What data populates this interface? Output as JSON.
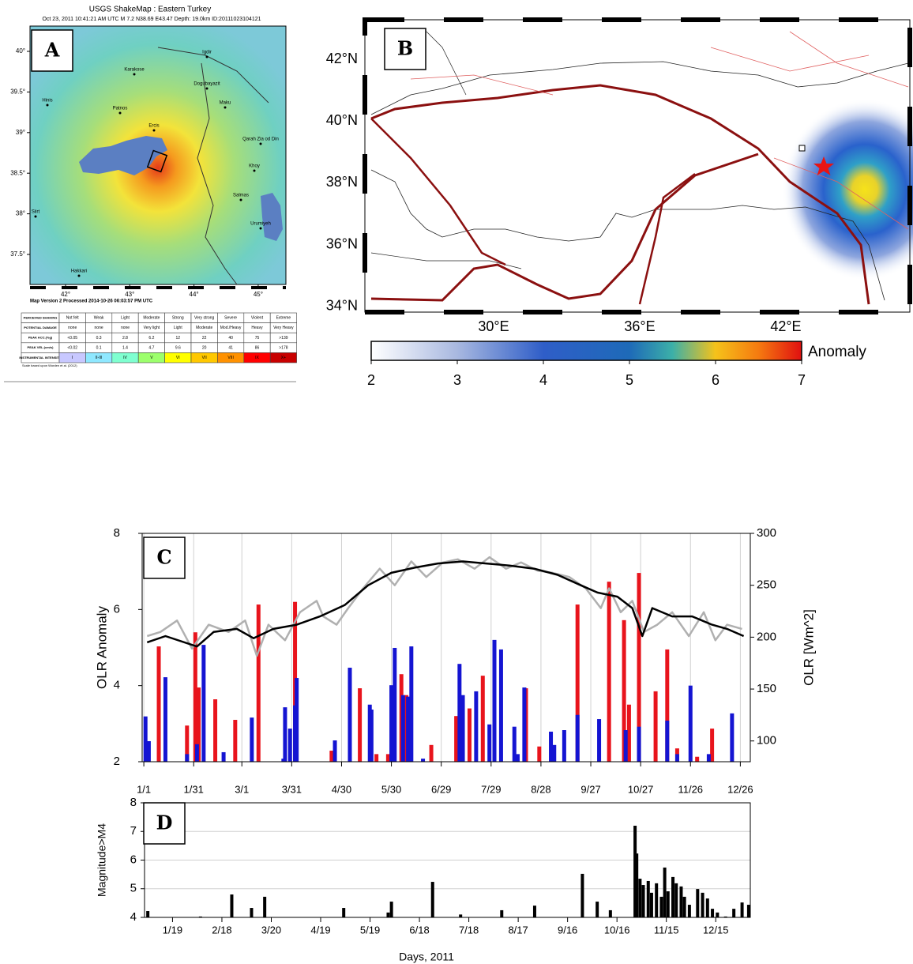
{
  "panel_a": {
    "label": "A",
    "title": "USGS ShakeMap : Eastern Turkey",
    "subtitle": "Oct 23, 2011 10:41:21 AM UTC    M 7.2    N38.69 E43.47    Depth: 19.0km    ID:20111023104121",
    "lat_ticks": [
      {
        "value": 40,
        "label": "40°"
      },
      {
        "value": 39.5,
        "label": "39.5°"
      },
      {
        "value": 39,
        "label": "39°"
      },
      {
        "value": 38.5,
        "label": "38.5°"
      },
      {
        "value": 38,
        "label": "38°"
      },
      {
        "value": 37.5,
        "label": "37.5°"
      }
    ],
    "lon_ticks": [
      {
        "value": 42,
        "label": "42°"
      },
      {
        "value": 43,
        "label": "43°"
      },
      {
        "value": 44,
        "label": "44°"
      },
      {
        "value": 45,
        "label": "45°"
      }
    ],
    "places": [
      "Igdir",
      "Karakose",
      "Dogubayazit",
      "Maku",
      "Hinis",
      "Patnos",
      "Ercis",
      "Qarah Zia od Din",
      "Khoy",
      "Salmas",
      "Urumiyeh",
      "Siirt",
      "Hakkari"
    ],
    "version_note": "Map Version 2 Processed 2014-10-26 06:03:57 PM UTC",
    "legend_table": [
      [
        "PERCEIVED SHAKING",
        "Not felt",
        "Weak",
        "Light",
        "Moderate",
        "Strong",
        "Very strong",
        "Severe",
        "Violent",
        "Extreme"
      ],
      [
        "POTENTIAL DAMAGE",
        "none",
        "none",
        "none",
        "Very light",
        "Light",
        "Moderate",
        "Mod./Heavy",
        "Heavy",
        "Very Heavy"
      ],
      [
        "PEAK ACC.(%g)",
        "<0.05",
        "0.3",
        "2.8",
        "6.2",
        "12",
        "22",
        "40",
        "75",
        ">139"
      ],
      [
        "PEAK VEL.(cm/s)",
        "<0.02",
        "0.1",
        "1.4",
        "4.7",
        "9.6",
        "20",
        "41",
        "86",
        ">178"
      ],
      [
        "INSTRUMENTAL INTENSITY",
        "I",
        "II-III",
        "IV",
        "V",
        "VI",
        "VII",
        "VIII",
        "IX",
        "X+"
      ]
    ],
    "scale_note": "Scale based upon Worden et al. (2012)"
  },
  "panel_b": {
    "label": "B",
    "lat_ticks": [
      {
        "value": 42,
        "label": "42°N"
      },
      {
        "value": 40,
        "label": "40°N"
      },
      {
        "value": 38,
        "label": "38°N"
      },
      {
        "value": 36,
        "label": "36°N"
      },
      {
        "value": 34,
        "label": "34°N"
      }
    ],
    "lon_ticks": [
      {
        "value": 30,
        "label": "30°E"
      },
      {
        "value": 36,
        "label": "36°E"
      },
      {
        "value": 42,
        "label": "42°E"
      }
    ],
    "colorbar": {
      "label": "Anomaly",
      "lim": [
        2,
        7
      ],
      "ticks": [
        2,
        3,
        4,
        5,
        6,
        7
      ]
    }
  },
  "chart_data": [
    {
      "type": "combo",
      "label": "C",
      "ylabel": "OLR Anomaly",
      "y2label": "OLR [Wm^2]",
      "xlim": [
        0,
        366
      ],
      "xticks": [
        {
          "value": 1,
          "label": "1/1"
        },
        {
          "value": 31,
          "label": "1/31"
        },
        {
          "value": 60,
          "label": "3/1"
        },
        {
          "value": 90,
          "label": "3/31"
        },
        {
          "value": 120,
          "label": "4/30"
        },
        {
          "value": 150,
          "label": "5/30"
        },
        {
          "value": 180,
          "label": "6/29"
        },
        {
          "value": 210,
          "label": "7/29"
        },
        {
          "value": 240,
          "label": "8/28"
        },
        {
          "value": 270,
          "label": "9/27"
        },
        {
          "value": 300,
          "label": "10/27"
        },
        {
          "value": 330,
          "label": "11/26"
        },
        {
          "value": 360,
          "label": "12/26"
        }
      ],
      "ylim": [
        2,
        8
      ],
      "yticks": [
        2,
        4,
        6,
        8
      ],
      "y2lim": [
        80,
        300
      ],
      "y2ticks": [
        100,
        150,
        200,
        250,
        300
      ],
      "grid": "x",
      "series": [
        {
          "type": "bar",
          "color": "#e8141c",
          "x": [
            10,
            27,
            32,
            34,
            44,
            56,
            70,
            92,
            114,
            131,
            141,
            148,
            156,
            159,
            174,
            189,
            197,
            205,
            231,
            239,
            262,
            281,
            290,
            293,
            299,
            309,
            316,
            322,
            334,
            343
          ],
          "values": [
            5.03,
            2.95,
            5.4,
            3.95,
            3.64,
            3.1,
            6.13,
            6.2,
            2.29,
            3.93,
            2.2,
            2.2,
            4.3,
            3.75,
            2.44,
            3.2,
            3.4,
            4.26,
            3.93,
            2.4,
            6.13,
            6.73,
            5.72,
            3.5,
            6.96,
            3.85,
            4.95,
            2.35,
            2.13,
            2.87
          ]
        },
        {
          "type": "bar",
          "color": "#1414d2",
          "x": [
            2,
            4,
            14,
            27,
            33,
            37,
            49,
            66,
            85,
            86,
            89,
            92,
            93,
            116,
            125,
            137,
            138,
            150,
            152,
            157,
            160,
            162,
            169,
            191,
            193,
            201,
            209,
            212,
            216,
            224,
            226,
            230,
            246,
            248,
            254,
            262,
            275,
            291,
            299,
            316,
            322,
            330,
            341,
            355
          ],
          "values": [
            3.19,
            2.54,
            4.22,
            2.2,
            2.46,
            5.07,
            2.25,
            3.16,
            2.08,
            3.43,
            2.87,
            3.48,
            4.2,
            2.56,
            4.47,
            3.5,
            3.37,
            4.01,
            4.99,
            3.75,
            3.71,
            5.03,
            2.08,
            4.57,
            3.75,
            3.85,
            2.98,
            5.2,
            4.95,
            2.92,
            2.2,
            3.95,
            2.79,
            2.44,
            2.83,
            3.23,
            3.12,
            2.83,
            2.92,
            3.08,
            2.2,
            4.0,
            2.2,
            3.27
          ]
        },
        {
          "type": "line",
          "axis": "y2",
          "color": "#b0b0b0",
          "x": [
            3,
            11,
            21,
            30,
            40,
            52,
            62,
            69,
            76,
            86,
            95,
            105,
            109,
            117,
            124,
            133,
            143,
            152,
            162,
            171,
            181,
            190,
            200,
            209,
            219,
            228,
            238,
            247,
            257,
            267,
            276,
            281,
            288,
            295,
            302,
            310,
            319,
            329,
            338,
            345,
            352,
            361
          ],
          "values": [
            201,
            205,
            216,
            189,
            212,
            205,
            216,
            182,
            212,
            197,
            224,
            235,
            220,
            212,
            228,
            247,
            266,
            250,
            273,
            258,
            272,
            275,
            266,
            277,
            266,
            272,
            264,
            262,
            258,
            247,
            228,
            247,
            224,
            235,
            205,
            212,
            224,
            201,
            224,
            197,
            212,
            208
          ]
        },
        {
          "type": "line",
          "axis": "y2",
          "color": "#000000",
          "x": [
            3,
            14,
            33,
            43,
            57,
            67,
            79,
            93,
            107,
            122,
            136,
            150,
            164,
            178,
            193,
            207,
            221,
            236,
            250,
            264,
            274,
            286,
            295,
            301,
            307,
            319,
            331,
            343,
            352,
            362
          ],
          "values": [
            195,
            201,
            191,
            205,
            208,
            199,
            208,
            212,
            220,
            231,
            250,
            262,
            267,
            271,
            273,
            271,
            269,
            266,
            260,
            250,
            243,
            239,
            228,
            201,
            228,
            220,
            220,
            212,
            208,
            201
          ]
        }
      ]
    },
    {
      "type": "bar",
      "label": "D",
      "ylabel": "Magnitude>M4",
      "xlabel": "Days, 2011",
      "xlim": [
        2,
        370
      ],
      "xticks": [
        {
          "value": 19,
          "label": "1/19"
        },
        {
          "value": 49,
          "label": "2/18"
        },
        {
          "value": 79,
          "label": "3/20"
        },
        {
          "value": 109,
          "label": "4/19"
        },
        {
          "value": 139,
          "label": "5/19"
        },
        {
          "value": 169,
          "label": "6/18"
        },
        {
          "value": 199,
          "label": "7/18"
        },
        {
          "value": 229,
          "label": "8/17"
        },
        {
          "value": 259,
          "label": "9/16"
        },
        {
          "value": 289,
          "label": "10/16"
        },
        {
          "value": 319,
          "label": "11/15"
        },
        {
          "value": 349,
          "label": "12/15"
        }
      ],
      "ylim": [
        4,
        8
      ],
      "yticks": [
        4,
        5,
        6,
        7,
        8
      ],
      "grid": "y",
      "color": "#000000",
      "x": [
        4,
        36,
        55,
        67,
        75,
        123,
        150,
        152,
        177,
        194,
        219,
        239,
        268,
        277,
        285,
        300,
        301,
        303,
        305,
        308,
        310,
        313,
        316,
        318,
        320,
        323,
        325,
        328,
        330,
        333,
        338,
        341,
        344,
        347,
        350,
        355,
        360,
        365,
        369
      ],
      "values": [
        4.22,
        4.03,
        4.8,
        4.33,
        4.72,
        4.33,
        4.17,
        4.55,
        5.24,
        4.1,
        4.25,
        4.41,
        5.52,
        4.55,
        4.25,
        7.2,
        6.23,
        5.35,
        5.13,
        5.27,
        4.86,
        5.19,
        4.72,
        5.74,
        4.91,
        5.41,
        5.19,
        5.08,
        4.72,
        4.44,
        4.99,
        4.86,
        4.66,
        4.3,
        4.17,
        4.03,
        4.3,
        4.52,
        4.44
      ]
    }
  ]
}
